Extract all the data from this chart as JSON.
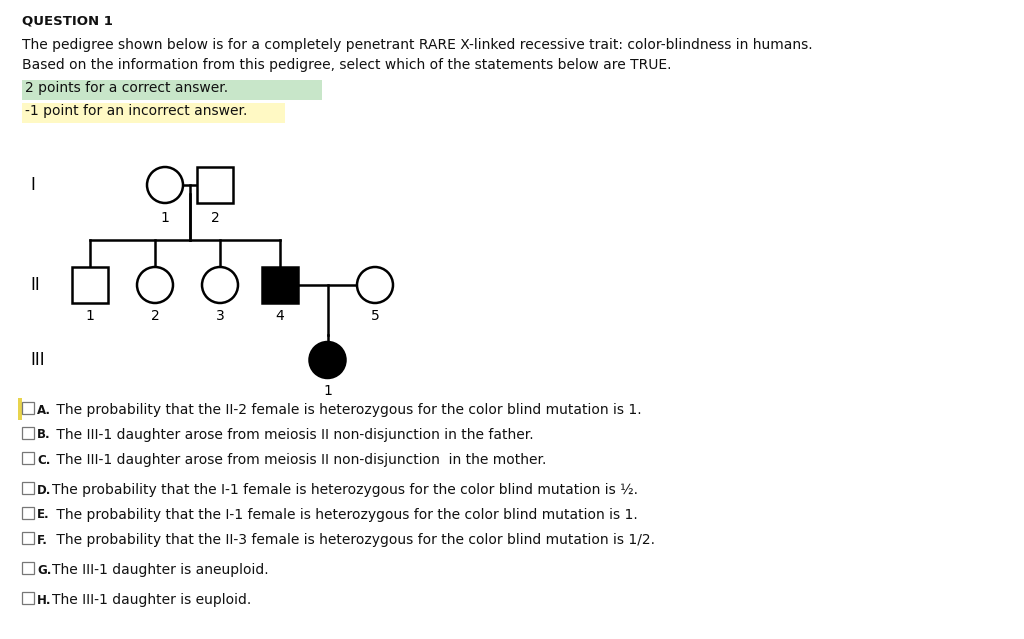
{
  "title": "QUESTION 1",
  "bg_color": "#ffffff",
  "question_text_line1": "The pedigree shown below is for a completely penetrant RARE X-linked recessive trait: color-blindness in humans.",
  "question_text_line2": "Based on the information from this pedigree, select which of the statements below are TRUE.",
  "highlight1_text": "2 points for a correct answer.",
  "highlight1_bg": "#c8e6c9",
  "highlight2_text": "-1 point for an incorrect answer.",
  "highlight2_bg": "#fff9c4",
  "options": [
    {
      "label": "A",
      "text": " The probability that the II-2 female is heterozygous for the color blind mutation is 1."
    },
    {
      "label": "B",
      "text": " The III-1 daughter arose from meiosis II non-disjunction in the father."
    },
    {
      "label": "C",
      "text": " The III-1 daughter arose from meiosis II non-disjunction  in the mother."
    },
    {
      "label": "D",
      "text": "The probability that the I-1 female is heterozygous for the color blind mutation is ½."
    },
    {
      "label": "E",
      "text": " The probability that the I-1 female is heterozygous for the color blind mutation is 1."
    },
    {
      "label": "F",
      "text": " The probability that the II-3 female is heterozygous for the color blind mutation is 1/2."
    },
    {
      "label": "G",
      "text": "The III-1 daughter is aneuploid."
    },
    {
      "label": "H",
      "text": "The III-1 daughter is euploid."
    }
  ]
}
